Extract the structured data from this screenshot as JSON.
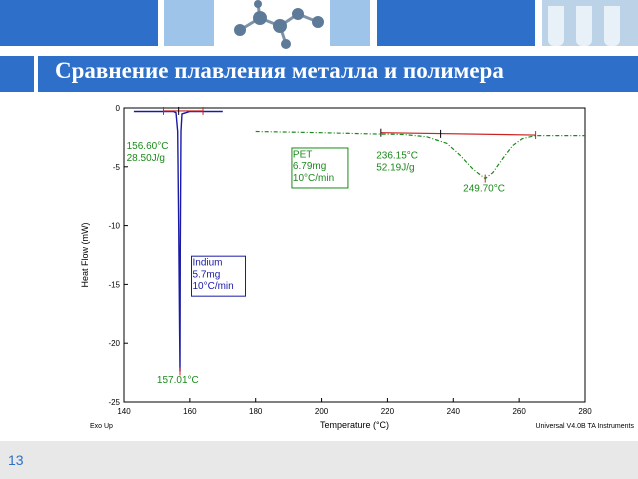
{
  "slide": {
    "title": "Сравнение плавления металла и полимера",
    "page_number": "13"
  },
  "chart_data": {
    "type": "line",
    "xlabel": "Temperature (°C)",
    "ylabel": "Heat Flow (mW)",
    "xlim": [
      140,
      280
    ],
    "ylim": [
      -25,
      0
    ],
    "x_ticks": [
      "140",
      "160",
      "180",
      "200",
      "220",
      "240",
      "260",
      "280"
    ],
    "y_ticks": [
      "0",
      "-5",
      "-10",
      "-15",
      "-20",
      "-25"
    ],
    "footer_left": "Exo Up",
    "footer_right": "Universal V4.0B TA Instruments",
    "series": [
      {
        "color": "#1a1aa6",
        "points": [
          [
            143,
            -0.3
          ],
          [
            150,
            -0.3
          ],
          [
            155,
            -0.3
          ],
          [
            155.8,
            -0.4
          ],
          [
            156.3,
            -2
          ],
          [
            156.6,
            -10
          ],
          [
            156.9,
            -19
          ],
          [
            157.01,
            -22.4
          ],
          [
            157.1,
            -12
          ],
          [
            157.3,
            -2
          ],
          [
            157.6,
            -0.5
          ],
          [
            160,
            -0.3
          ],
          [
            170,
            -0.3
          ]
        ]
      },
      {
        "color": "#1a8a1a",
        "points": [
          [
            180,
            -2.0
          ],
          [
            200,
            -2.1
          ],
          [
            215,
            -2.2
          ],
          [
            225,
            -2.25
          ],
          [
            232,
            -2.45
          ],
          [
            238,
            -3.0
          ],
          [
            242,
            -4.0
          ],
          [
            246,
            -5.2
          ],
          [
            249.7,
            -6.0
          ],
          [
            252,
            -5.5
          ],
          [
            255,
            -4.3
          ],
          [
            258,
            -3.2
          ],
          [
            261,
            -2.6
          ],
          [
            265,
            -2.35
          ],
          [
            280,
            -2.35
          ]
        ]
      }
    ],
    "annotations": [
      {
        "text": "156.60°C",
        "color": "#1a8a1a"
      },
      {
        "text": "28.50J/g",
        "color": "#1a8a1a"
      },
      {
        "text": "157.01°C",
        "color": "#1a8a1a"
      },
      {
        "text": "Indium",
        "color": "#1a1aa6"
      },
      {
        "text": "5.7mg",
        "color": "#1a1aa6"
      },
      {
        "text": "10°C/min",
        "color": "#1a1aa6"
      },
      {
        "text": "PET",
        "color": "#1a8a1a"
      },
      {
        "text": "6.79mg",
        "color": "#1a8a1a"
      },
      {
        "text": "10°C/min",
        "color": "#1a8a1a"
      },
      {
        "text": "236.15°C",
        "color": "#1a8a1a"
      },
      {
        "text": "52.19J/g",
        "color": "#1a8a1a"
      },
      {
        "text": "249.70°C",
        "color": "#1a8a1a"
      }
    ]
  }
}
